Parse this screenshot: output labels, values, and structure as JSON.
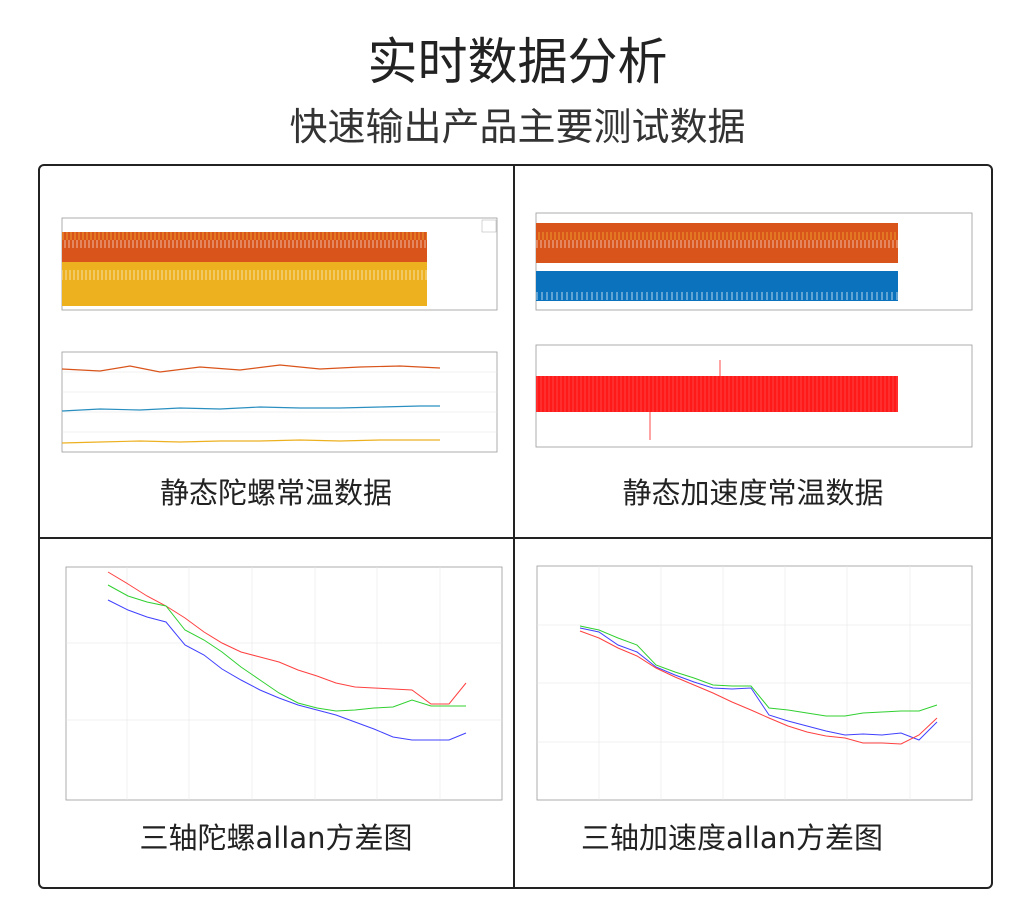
{
  "header": {
    "title": "实时数据分析",
    "subtitle": "快速输出产品主要测试数据"
  },
  "panels": [
    {
      "caption": "静态陀螺常温数据"
    },
    {
      "caption": "静态加速度常温数据"
    },
    {
      "caption": "三轴陀螺allan方差图"
    },
    {
      "caption": "三轴加速度allan方差图"
    }
  ]
}
